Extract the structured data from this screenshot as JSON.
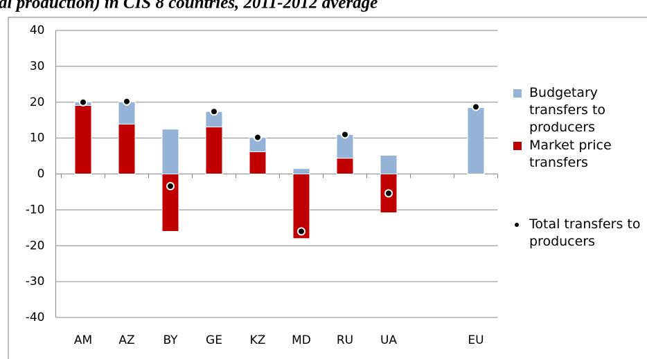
{
  "chart_data": {
    "type": "stacked-bar",
    "title": "al production) in CIS 8 countries, 2011-2012 average",
    "categories": [
      "AM",
      "AZ",
      "BY",
      "GE",
      "KZ",
      "MD",
      "RU",
      "UA",
      null,
      "EU"
    ],
    "series": [
      {
        "name": "Budgetary transfers to producers",
        "color": "#95b3d7",
        "kind": "bar",
        "values": [
          1,
          6.2,
          12.5,
          4.3,
          4,
          1.5,
          6.6,
          5.2,
          null,
          18.5
        ]
      },
      {
        "name": "Market price transfers",
        "color": "#c00000",
        "kind": "bar",
        "values": [
          19.1,
          13.9,
          -16,
          13.1,
          6.2,
          -18,
          4.4,
          -10.8,
          null,
          0
        ]
      },
      {
        "name": "Total transfers to producers",
        "color": "#000000",
        "kind": "marker",
        "values": [
          20,
          20.2,
          -3.4,
          17.4,
          10.2,
          -16,
          11,
          -5.4,
          null,
          18.7
        ]
      }
    ],
    "ylim": [
      -40,
      40
    ],
    "yticks": [
      -40,
      -30,
      -20,
      -10,
      0,
      10,
      20,
      30,
      40
    ],
    "grid": true
  }
}
